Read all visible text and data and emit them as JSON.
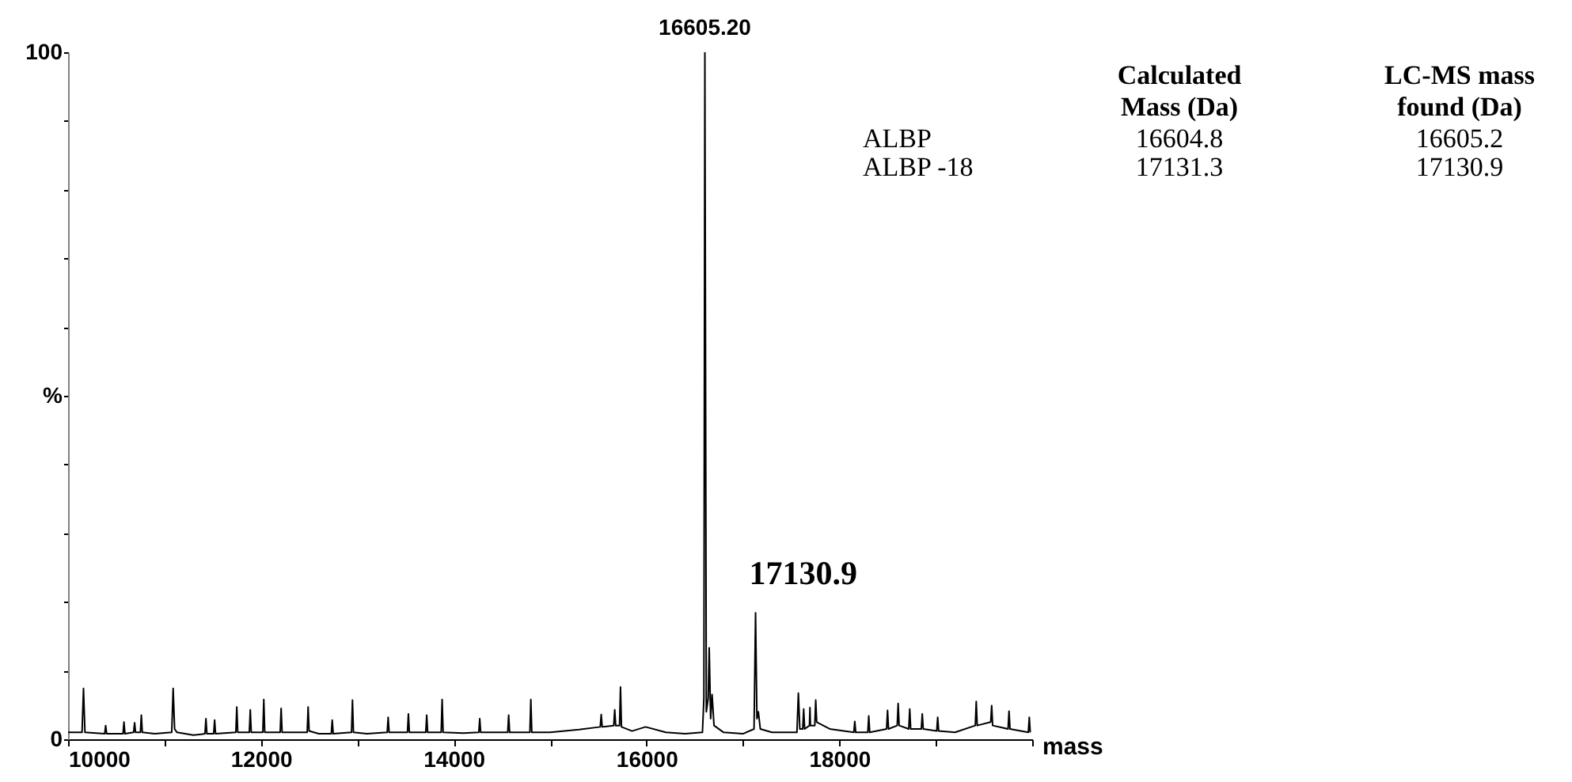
{
  "chart_data": {
    "type": "line",
    "xlabel": "mass",
    "color": "#000000",
    "grid": false,
    "marker": "none",
    "line_style": "solid",
    "xlim": [
      10000,
      20000
    ],
    "ylim": [
      0,
      100
    ],
    "xticks": [
      10000,
      {
        "value": 11000,
        "label": null
      },
      12000,
      {
        "value": 13000,
        "label": null
      },
      14000,
      {
        "value": 15000,
        "label": null
      },
      16000,
      {
        "value": 17000,
        "label": null
      },
      18000,
      {
        "value": 19000,
        "label": null
      },
      {
        "value": 20000,
        "label": null
      }
    ],
    "yticks": [
      0,
      {
        "value": 10,
        "label": null
      },
      {
        "value": 20,
        "label": null
      },
      {
        "value": 30,
        "label": null
      },
      {
        "value": 40,
        "label": null
      },
      {
        "value": 50,
        "label": "%"
      },
      {
        "value": 60,
        "label": null
      },
      {
        "value": 70,
        "label": null
      },
      {
        "value": 80,
        "label": null
      },
      {
        "value": 90,
        "label": null
      },
      100
    ],
    "x": [
      10000,
      10145,
      10160,
      10175,
      10380,
      10390,
      10400,
      10570,
      10580,
      10590,
      10680,
      10690,
      10700,
      10750,
      10760,
      10770,
      10900,
      11075,
      11090,
      11105,
      11130,
      11300,
      11420,
      11430,
      11440,
      11510,
      11520,
      11530,
      11740,
      11750,
      11760,
      11880,
      11890,
      11900,
      12020,
      12030,
      12040,
      12200,
      12210,
      12220,
      12480,
      12490,
      12500,
      12600,
      12730,
      12740,
      12750,
      12940,
      12950,
      12960,
      13100,
      13310,
      13320,
      13330,
      13520,
      13530,
      13540,
      13710,
      13720,
      13730,
      13870,
      13880,
      13890,
      14100,
      14260,
      14270,
      14280,
      14560,
      14570,
      14580,
      14790,
      14800,
      14810,
      15000,
      15300,
      15520,
      15530,
      15540,
      15660,
      15670,
      15680,
      15720,
      15730,
      15740,
      15850,
      15990,
      16200,
      16400,
      16580,
      16595,
      16605.2,
      16620,
      16640,
      16650,
      16665,
      16680,
      16700,
      16800,
      17000,
      17115,
      17130.9,
      17145,
      17160,
      17180,
      17300,
      17560,
      17575,
      17590,
      17620,
      17630,
      17640,
      17690,
      17695,
      17700,
      17745,
      17755,
      17765,
      17900,
      18150,
      18160,
      18170,
      18295,
      18305,
      18315,
      18490,
      18500,
      18510,
      18600,
      18610,
      18620,
      18720,
      18730,
      18740,
      18850,
      18860,
      18870,
      19010,
      19020,
      19030,
      19200,
      19410,
      19420,
      19430,
      19570,
      19580,
      19590,
      19750,
      19760,
      19770,
      19960,
      19970,
      19980
    ],
    "values": [
      1,
      1,
      7.4,
      1,
      0.8,
      2,
      0.8,
      0.8,
      2.5,
      0.8,
      1,
      2.4,
      1,
      1,
      3.5,
      1,
      0.8,
      1,
      7.4,
      1.5,
      1,
      0.6,
      0.8,
      3,
      0.8,
      0.8,
      2.8,
      0.8,
      1,
      4.7,
      1,
      1,
      4.3,
      1,
      1,
      5.8,
      1,
      1,
      4.5,
      1,
      1,
      4.7,
      1.2,
      0.8,
      0.8,
      2.8,
      0.8,
      1,
      5.7,
      1,
      0.8,
      1,
      3.2,
      1,
      1,
      3.7,
      1,
      1,
      3.5,
      1,
      1,
      5.8,
      1,
      0.9,
      1,
      3,
      1,
      1,
      3.5,
      1,
      1,
      5.8,
      1,
      1,
      1.4,
      1.8,
      3.6,
      1.8,
      2,
      4.3,
      2,
      2,
      7.6,
      1.8,
      1.2,
      1.8,
      1,
      0.8,
      1,
      6,
      100,
      4,
      6,
      13.3,
      3,
      6.5,
      2,
      1,
      0.8,
      1.5,
      18.4,
      3,
      4,
      1.5,
      1,
      1,
      6.7,
      1.5,
      1.5,
      4.4,
      1.5,
      2,
      4.6,
      2,
      2,
      5.7,
      2.5,
      1.5,
      1,
      2.6,
      1,
      1,
      3.4,
      1,
      1.5,
      4.2,
      1.5,
      2,
      5.2,
      2,
      1.5,
      4.4,
      1.5,
      1.5,
      3.7,
      1.5,
      1.2,
      3.2,
      1.2,
      1,
      2,
      5.5,
      2,
      2.5,
      4.9,
      2,
      1.5,
      4.1,
      1.5,
      1,
      3.2,
      1
    ],
    "annotations": [
      {
        "text": "16605.20",
        "x": 16605.2,
        "y": 100
      },
      {
        "text": "17130.9",
        "x": 17130.9,
        "y": 18.4
      },
      "Calculated\nMass (Da)",
      "LC-MS mass\nfound (Da)",
      "ALBP",
      "16604.8",
      "16605.2",
      "ALBP -18",
      "17131.3",
      "17130.9"
    ]
  }
}
